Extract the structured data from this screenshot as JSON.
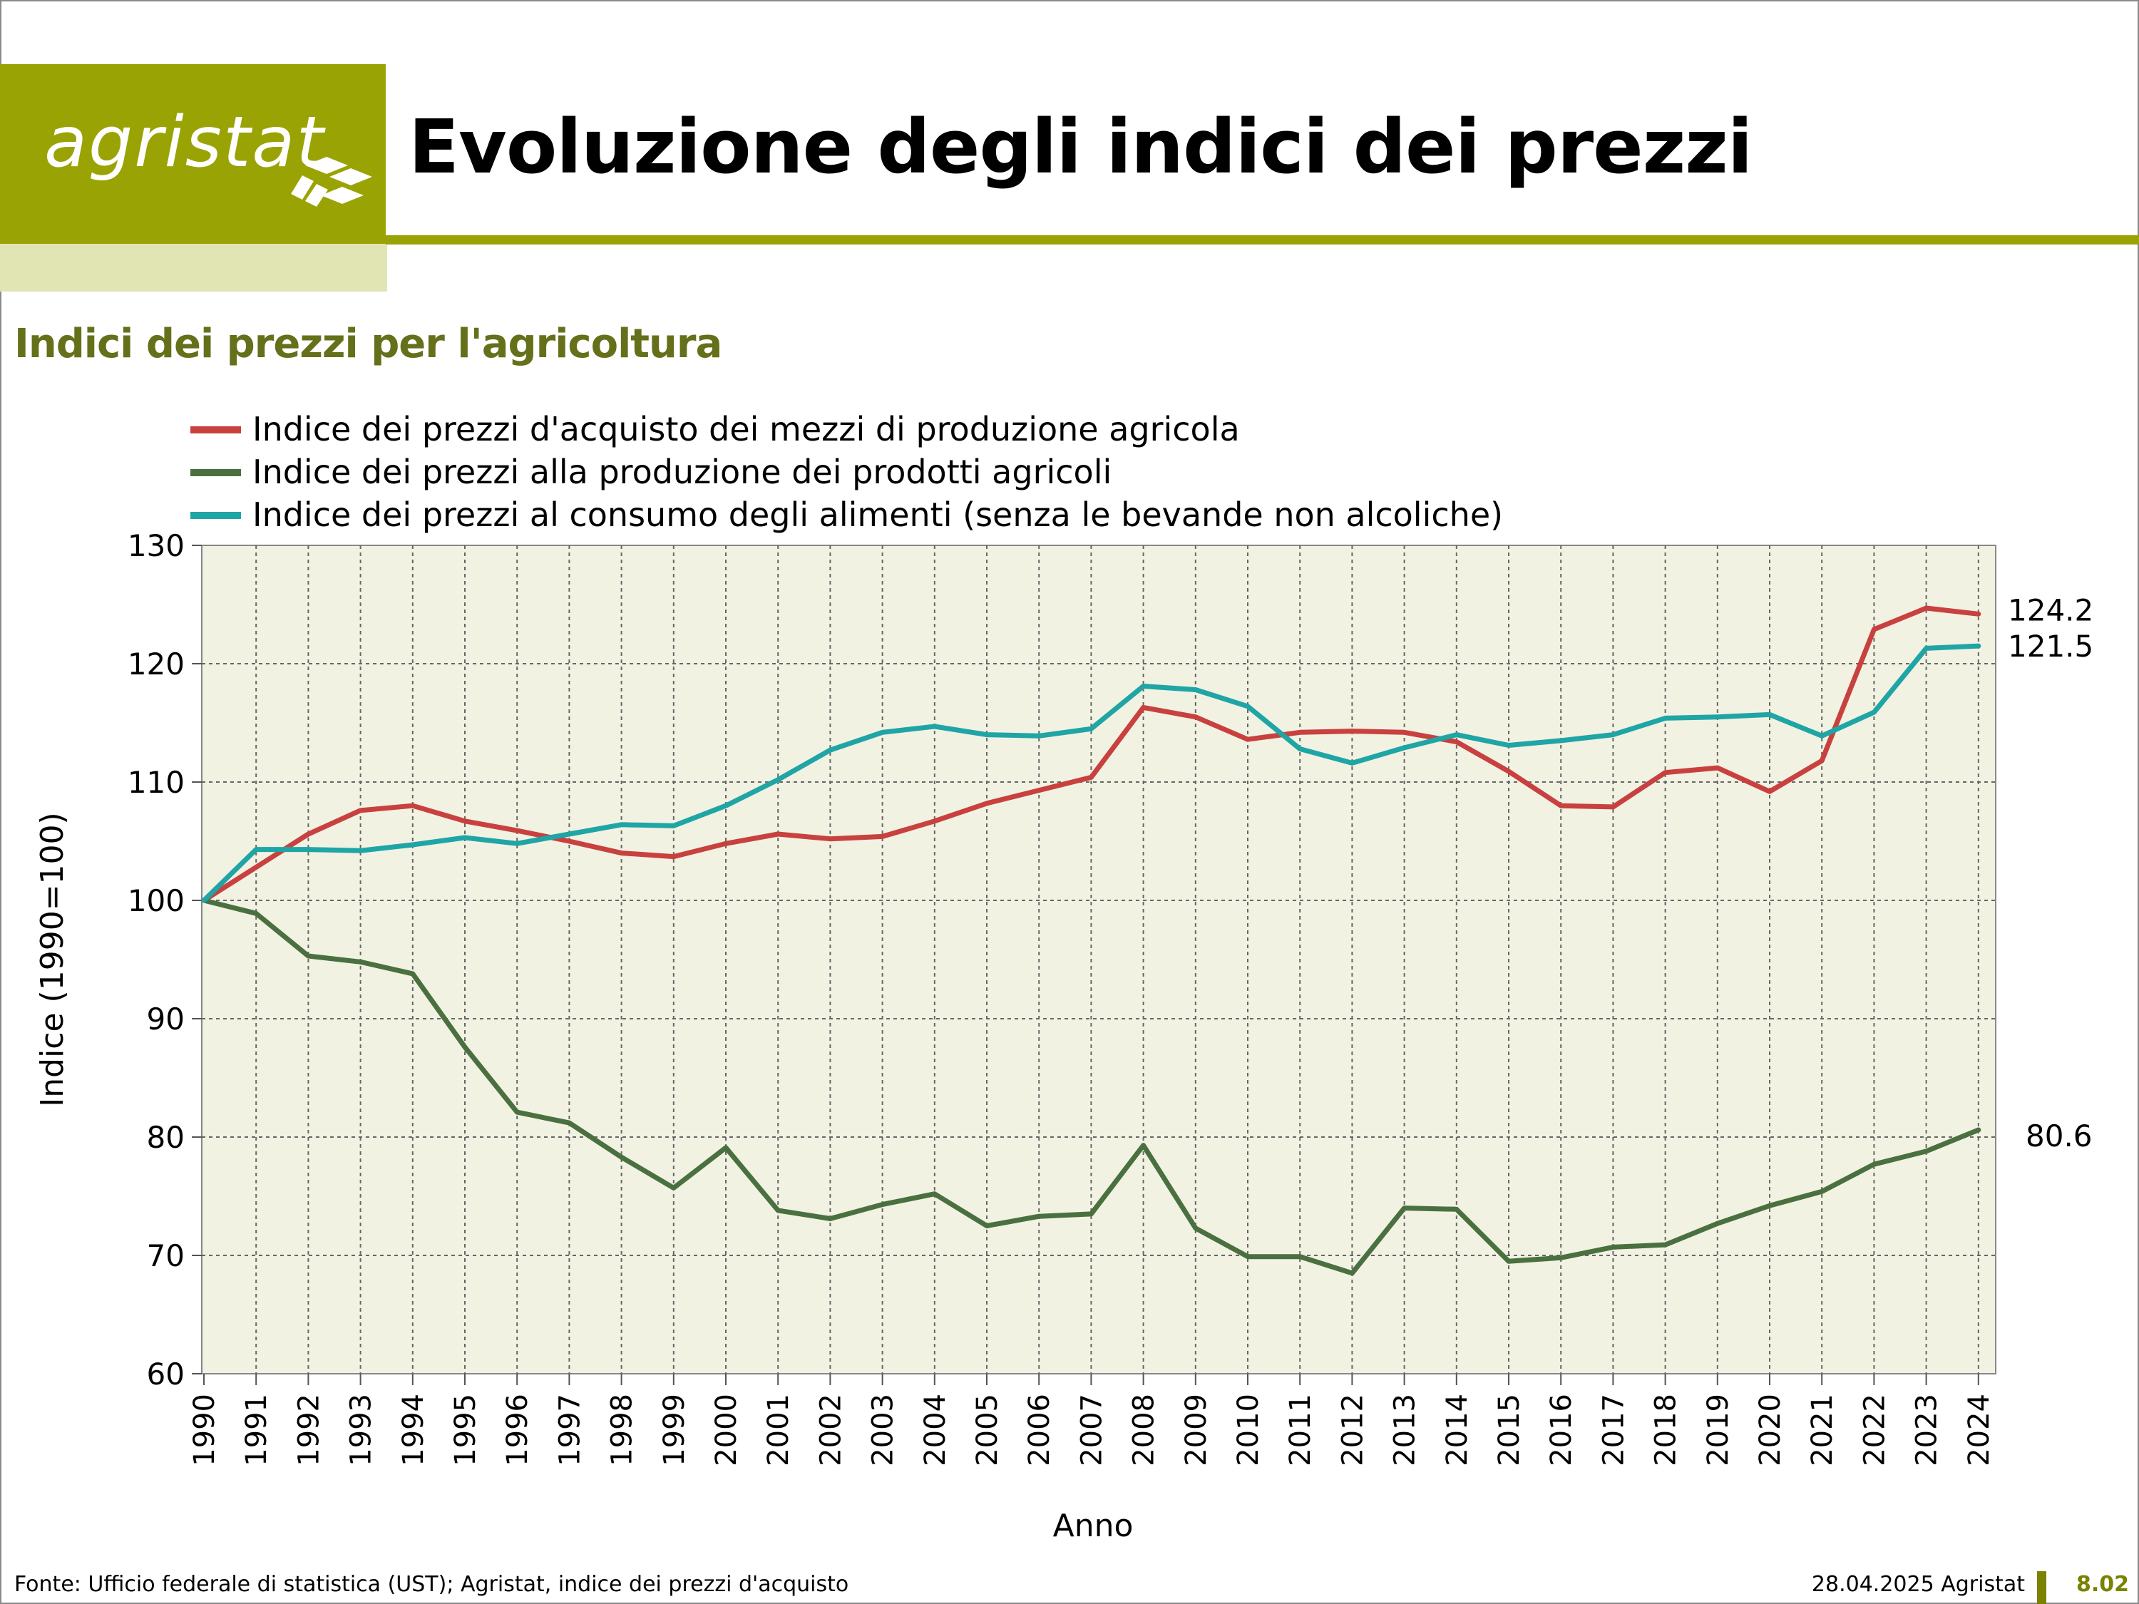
{
  "header": {
    "logo_text": "agristat",
    "title": "Evoluzione degli indici dei prezzi",
    "subtitle": "Indici dei prezzi per l'agricoltura"
  },
  "footer": {
    "source": "Fonte: Ufficio federale di statistica (UST); Agristat, indice dei prezzi d'acquisto",
    "date_label": "28.04.2025 Agristat",
    "page_number": "8.02"
  },
  "colors": {
    "brand": "#9aa304",
    "subtitle": "#66701a",
    "plot_bg": "#f2f2e3",
    "grid": "#555555"
  },
  "chart_data": {
    "type": "line",
    "title": "Indici dei prezzi per l'agricoltura",
    "xlabel": "Anno",
    "ylabel": "Indice (1990=100)",
    "ylim": [
      60,
      130
    ],
    "yticks": [
      60,
      70,
      80,
      90,
      100,
      110,
      120,
      130
    ],
    "grid": true,
    "legend_position": "top-left",
    "x": [
      1990,
      1991,
      1992,
      1993,
      1994,
      1995,
      1996,
      1997,
      1998,
      1999,
      2000,
      2001,
      2002,
      2003,
      2004,
      2005,
      2006,
      2007,
      2008,
      2009,
      2010,
      2011,
      2012,
      2013,
      2014,
      2015,
      2016,
      2017,
      2018,
      2019,
      2020,
      2021,
      2022,
      2023,
      2024
    ],
    "series": [
      {
        "name": "Indice dei prezzi d'acquisto dei mezzi di produzione agricola",
        "color": "#c8413f",
        "values": [
          100,
          102.8,
          105.6,
          107.6,
          108.0,
          106.7,
          105.9,
          105.0,
          104.0,
          103.7,
          104.8,
          105.6,
          105.2,
          105.4,
          106.7,
          108.2,
          109.3,
          110.4,
          116.3,
          115.5,
          113.6,
          114.2,
          114.3,
          114.2,
          113.4,
          110.9,
          108.0,
          107.9,
          110.8,
          111.2,
          109.2,
          111.8,
          122.9,
          124.7,
          124.2
        ],
        "end_label": "124.2"
      },
      {
        "name": "Indice dei prezzi alla produzione dei prodotti agricoli",
        "color": "#4a7040",
        "values": [
          100,
          98.9,
          95.3,
          94.8,
          93.8,
          87.6,
          82.1,
          81.2,
          78.3,
          75.7,
          79.1,
          73.8,
          73.1,
          74.3,
          75.2,
          72.5,
          73.3,
          73.5,
          79.3,
          72.3,
          69.9,
          69.9,
          68.5,
          74.0,
          73.9,
          69.5,
          69.8,
          70.7,
          70.9,
          72.7,
          74.2,
          75.4,
          77.7,
          78.8,
          80.6
        ],
        "end_label": "80.6"
      },
      {
        "name": "Indice dei prezzi al consumo degli alimenti (senza le bevande non alcoliche)",
        "color": "#1fa5a5",
        "values": [
          100,
          104.3,
          104.3,
          104.2,
          104.7,
          105.3,
          104.8,
          105.6,
          106.4,
          106.3,
          108.0,
          110.2,
          112.7,
          114.2,
          114.7,
          114.0,
          113.9,
          114.5,
          118.1,
          117.8,
          116.4,
          112.8,
          111.6,
          112.9,
          114.0,
          113.1,
          113.5,
          114.0,
          115.4,
          115.5,
          115.7,
          113.9,
          115.9,
          121.3,
          121.5
        ],
        "end_label": "121.5"
      }
    ]
  }
}
